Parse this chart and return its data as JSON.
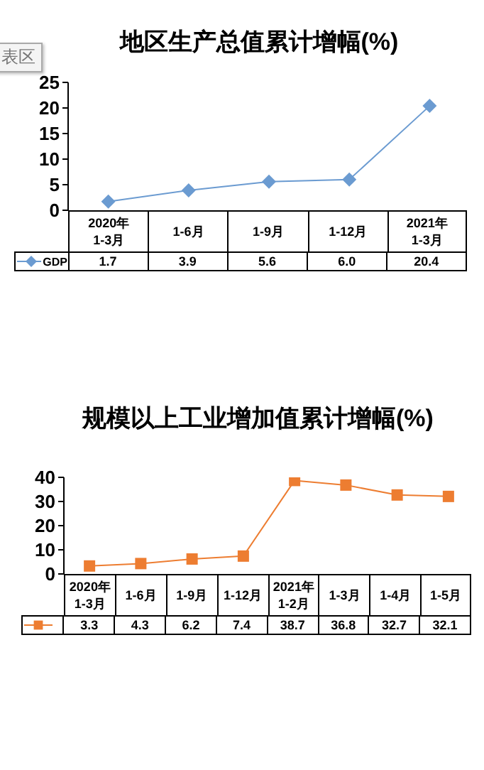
{
  "chart_data": [
    {
      "type": "line",
      "title": "地区生产总值累计增幅(%)",
      "annotations": [
        "表区"
      ],
      "categories": [
        "2020年\n1-3月",
        "1-6月",
        "1-9月",
        "1-12月",
        "2021年\n1-3月"
      ],
      "series": [
        {
          "name": "GDP",
          "color": "#6b9bd1",
          "values": [
            1.7,
            3.9,
            5.6,
            6.0,
            20.4
          ],
          "value_labels": [
            "1.7",
            "3.9",
            "5.6",
            "6.0",
            "20.4"
          ]
        }
      ],
      "ylim": [
        0,
        25
      ],
      "yticks": [
        0,
        5,
        10,
        15,
        20,
        25
      ],
      "grid": false,
      "legend": "bottom",
      "marker": "diamond"
    },
    {
      "type": "line",
      "title": "规模以上工业增加值累计增幅(%)",
      "categories": [
        "2020年\n1-3月",
        "1-6月",
        "1-9月",
        "1-12月",
        "2021年\n1-2月",
        "1-3月",
        "1-4月",
        "1-5月"
      ],
      "series": [
        {
          "color": "#ed7d31",
          "values": [
            3.3,
            4.3,
            6.2,
            7.4,
            38.7,
            36.8,
            32.7,
            32.1
          ],
          "value_labels": [
            "3.3",
            "4.3",
            "6.2",
            "7.4",
            "38.7",
            "36.8",
            "32.7",
            "32.1"
          ]
        }
      ],
      "ylim": [
        0,
        40
      ],
      "yticks": [
        0,
        10,
        20,
        30,
        40
      ],
      "grid": false,
      "marker": "square"
    }
  ]
}
